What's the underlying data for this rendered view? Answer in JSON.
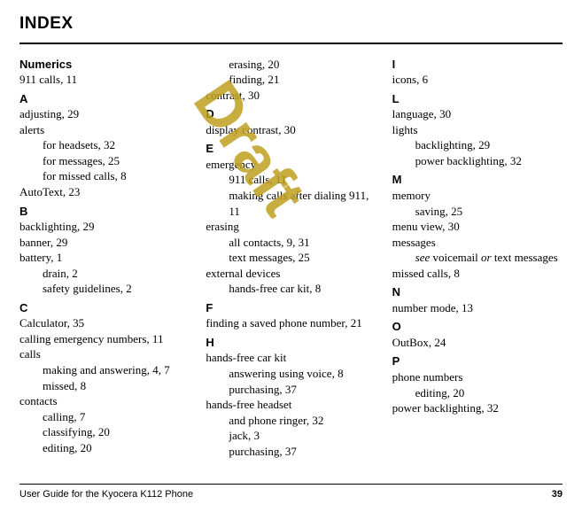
{
  "title": "INDEX",
  "watermark": "Draft",
  "footer": {
    "text": "User Guide for the Kyocera K112 Phone",
    "page": "39"
  },
  "c": {
    "numerics": "Numerics",
    "numerics_e1": "911 calls, 11",
    "A": "A",
    "a1": "adjusting, 29",
    "a2": "alerts",
    "a2a": "for headsets, 32",
    "a2b": "for messages, 25",
    "a2c": "for missed calls, 8",
    "a3": "AutoText, 23",
    "B": "B",
    "b1": "backlighting, 29",
    "b2": "banner, 29",
    "b3": "battery, 1",
    "b3a": "drain, 2",
    "b3b": "safety guidelines, 2",
    "C": "C",
    "c1": "Calculator, 35",
    "c2": "calling emergency numbers, 11",
    "c3": "calls",
    "c3a": "making and answering, 4, 7",
    "c3b": "missed, 8",
    "c4": "contacts",
    "c4a": "calling, 7",
    "c4b": "classifying, 20",
    "c4c": "editing, 20",
    "c4d": "erasing, 20",
    "c4e": "finding, 21",
    "c5": "contrast, 30",
    "D": "D",
    "d1": "display contrast, 30",
    "E": "E",
    "e1": "emergency",
    "e1a": "911 calls, 11",
    "e1b": "making calls after dialing 911, 11",
    "e2": "erasing",
    "e2a": "all contacts, 9, 31",
    "e2b": "text messages, 25",
    "e3": "external devices",
    "e3a": "hands-free car kit, 8",
    "F": "F",
    "f1": "finding a saved phone number, 21",
    "H": "H",
    "h1": "hands-free car kit",
    "h1a": "answering using voice, 8",
    "h1b": "purchasing, 37",
    "h2": "hands-free headset",
    "h2a": "and phone ringer, 32",
    "h2b": "jack, 3",
    "h2c": "purchasing, 37",
    "I": "I",
    "i1": "icons, 6",
    "L": "L",
    "l1": "language, 30",
    "l2": "lights",
    "l2a": "backlighting, 29",
    "l2b": "power backlighting, 32",
    "M": "M",
    "m1": "memory",
    "m1a": "saving, 25",
    "m2": "menu view, 30",
    "m3": "messages",
    "m3see": "see",
    "m3mid": " voicemail ",
    "m3or": " or ",
    "m3rest": "text messages",
    "m4": "missed calls, 8",
    "N": "N",
    "n1": "number mode, 13",
    "O": "O",
    "o1": "OutBox, 24",
    "P": "P",
    "p1": "phone numbers",
    "p1a": "editing, 20",
    "p2": "power backlighting, 32"
  }
}
